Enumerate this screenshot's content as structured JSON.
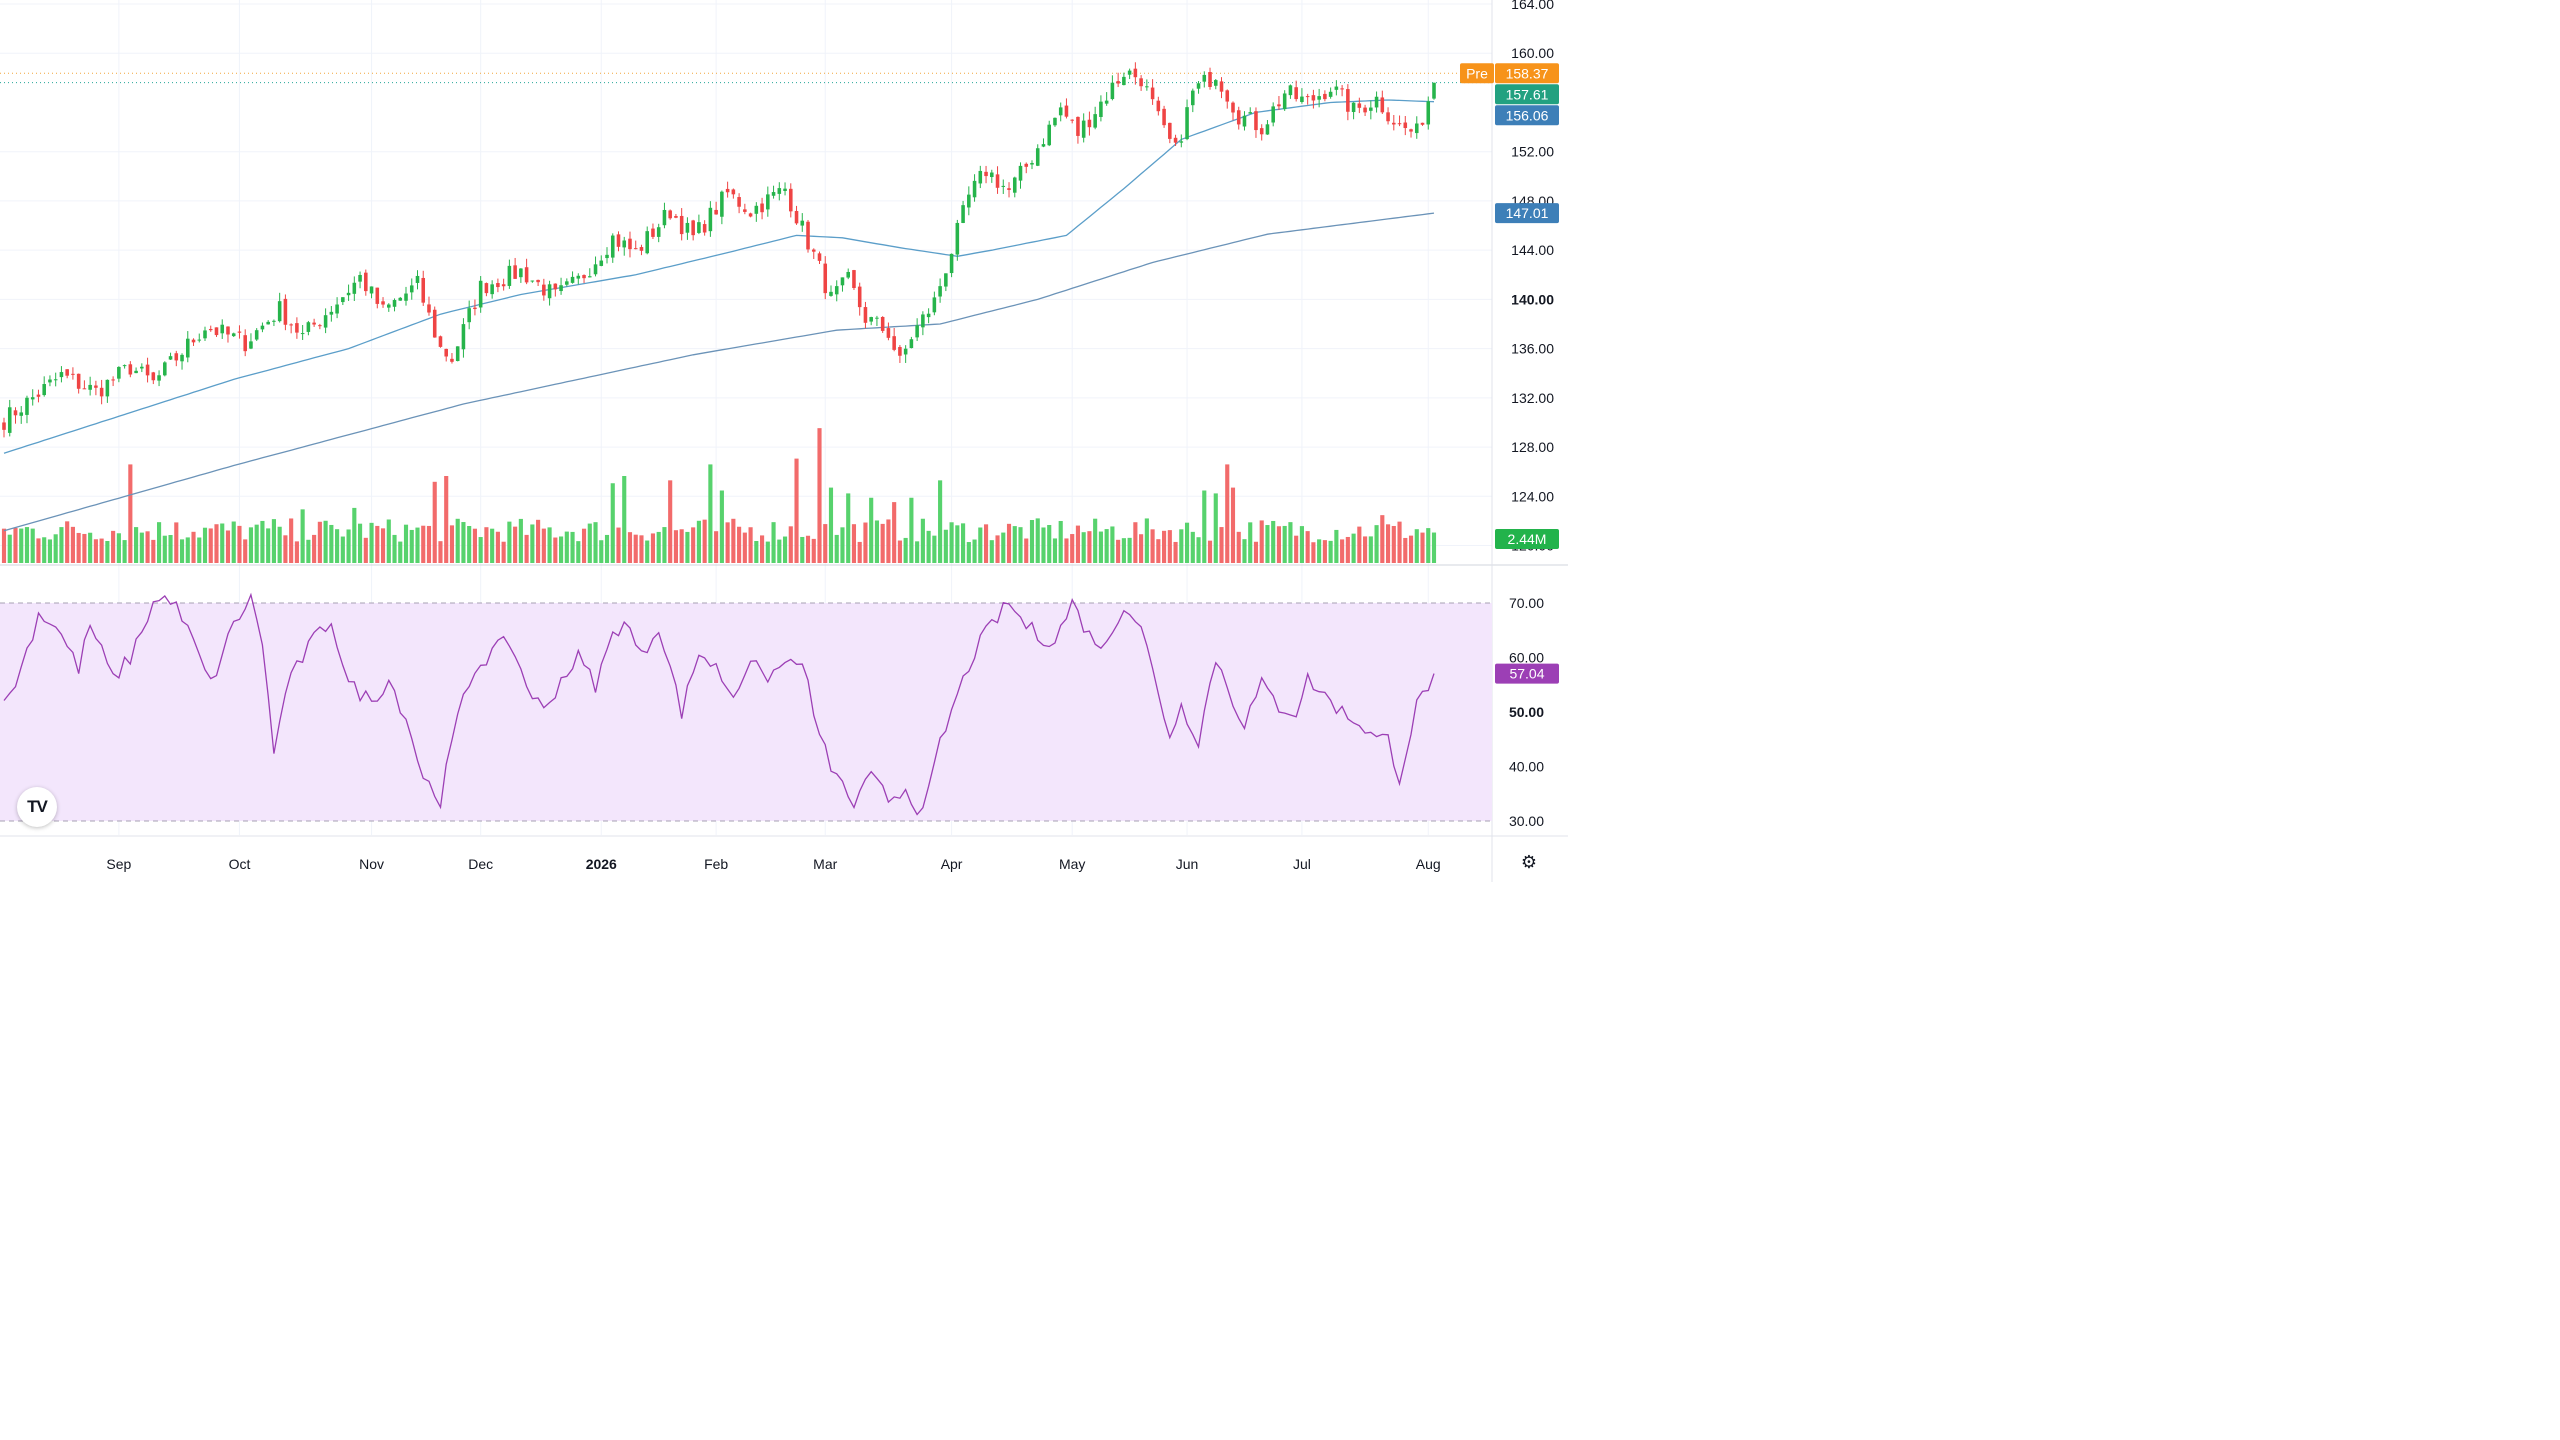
{
  "chart_data": {
    "type": "candlestick",
    "main_panel": {
      "y_ticks": [
        "164.00",
        "160.00",
        "152.00",
        "148.00",
        "144.00",
        "140.00",
        "136.00",
        "132.00",
        "128.00",
        "124.00",
        "120.00"
      ],
      "ylim": [
        118.5,
        164.0
      ],
      "price_series": {
        "start_open": 130.0,
        "waypoints": [
          [
            0,
            130.2
          ],
          [
            10,
            133.8
          ],
          [
            16,
            132.5
          ],
          [
            22,
            134.5
          ],
          [
            26,
            133.2
          ],
          [
            35,
            137.8
          ],
          [
            42,
            136.5
          ],
          [
            48,
            139.2
          ],
          [
            52,
            137.0
          ],
          [
            58,
            139.8
          ],
          [
            62,
            141.8
          ],
          [
            66,
            139.0
          ],
          [
            72,
            141.2
          ],
          [
            76,
            136.0
          ],
          [
            78,
            135.2
          ],
          [
            83,
            141.0
          ],
          [
            90,
            142.3
          ],
          [
            96,
            140.2
          ],
          [
            100,
            141.5
          ],
          [
            106,
            145.0
          ],
          [
            110,
            143.8
          ],
          [
            116,
            147.2
          ],
          [
            120,
            145.0
          ],
          [
            126,
            148.6
          ],
          [
            130,
            147.2
          ],
          [
            136,
            149.0
          ],
          [
            138,
            146.8
          ],
          [
            142,
            142.5
          ],
          [
            144,
            140.0
          ],
          [
            147,
            141.5
          ],
          [
            150,
            138.5
          ],
          [
            154,
            137.3
          ],
          [
            156,
            134.8
          ],
          [
            158,
            137.0
          ],
          [
            162,
            139.8
          ],
          [
            165,
            144.0
          ],
          [
            168,
            148.3
          ],
          [
            171,
            150.5
          ],
          [
            175,
            148.8
          ],
          [
            178,
            150.8
          ],
          [
            184,
            155.5
          ],
          [
            187,
            153.5
          ],
          [
            195,
            158.5
          ],
          [
            198,
            158.0
          ],
          [
            202,
            153.5
          ],
          [
            204,
            152.0
          ],
          [
            207,
            156.8
          ],
          [
            211,
            158.4
          ],
          [
            215,
            155.0
          ],
          [
            219,
            154.0
          ],
          [
            223,
            156.8
          ],
          [
            227,
            156.0
          ],
          [
            231,
            157.3
          ],
          [
            235,
            155.3
          ],
          [
            239,
            156.3
          ],
          [
            243,
            154.0
          ],
          [
            246,
            153.5
          ],
          [
            249,
            157.6
          ]
        ]
      },
      "moving_averages": [
        {
          "points": [
            [
              0,
              127.5
            ],
            [
              20,
              130.5
            ],
            [
              40,
              133.5
            ],
            [
              60,
              136.0
            ],
            [
              76,
              138.8
            ],
            [
              90,
              140.4
            ],
            [
              110,
              142.0
            ],
            [
              126,
              143.8
            ],
            [
              138,
              145.2
            ],
            [
              146,
              145.0
            ],
            [
              156,
              144.2
            ],
            [
              166,
              143.5
            ],
            [
              172,
              144.0
            ],
            [
              185,
              145.2
            ],
            [
              195,
              149.0
            ],
            [
              205,
              153.0
            ],
            [
              218,
              155.2
            ],
            [
              231,
              156.0
            ],
            [
              241,
              156.2
            ],
            [
              249,
              156.06
            ]
          ],
          "color": "#5b9ec9"
        },
        {
          "points": [
            [
              0,
              121.2
            ],
            [
              40,
              126.5
            ],
            [
              80,
              131.5
            ],
            [
              120,
              135.5
            ],
            [
              145,
              137.5
            ],
            [
              163,
              138.0
            ],
            [
              180,
              140.0
            ],
            [
              200,
              143.0
            ],
            [
              220,
              145.3
            ],
            [
              249,
              147.01
            ]
          ],
          "color": "#6b93b8"
        }
      ],
      "reference_lines": [
        {
          "value": 158.37,
          "color": "#f2a53a"
        },
        {
          "value": 157.61,
          "color": "#26a69a"
        }
      ],
      "badges": [
        {
          "prefix": "Pre",
          "text": "158.37",
          "value": 158.37,
          "color": "#f7931a"
        },
        {
          "text": "157.61",
          "value": 157.61,
          "color": "#22a180"
        },
        {
          "text": "156.06",
          "value": 156.06,
          "color": "#3d7fb8"
        },
        {
          "text": "147.01",
          "value": 147.01,
          "color": "#3d7fb8"
        }
      ],
      "up_color": "#26b44b",
      "down_color": "#ef4444"
    },
    "volume_panel": {
      "base_level": 0.22,
      "spikes": [
        [
          22,
          0.68
        ],
        [
          30,
          0.28
        ],
        [
          48,
          0.25
        ],
        [
          52,
          0.37
        ],
        [
          61,
          0.38
        ],
        [
          75,
          0.56
        ],
        [
          77,
          0.6
        ],
        [
          106,
          0.55
        ],
        [
          108,
          0.6
        ],
        [
          116,
          0.57
        ],
        [
          123,
          0.68
        ],
        [
          125,
          0.5
        ],
        [
          138,
          0.72
        ],
        [
          142,
          0.93
        ],
        [
          144,
          0.52
        ],
        [
          147,
          0.48
        ],
        [
          151,
          0.45
        ],
        [
          155,
          0.42
        ],
        [
          158,
          0.45
        ],
        [
          163,
          0.57
        ],
        [
          209,
          0.5
        ],
        [
          211,
          0.48
        ],
        [
          213,
          0.68
        ],
        [
          214,
          0.52
        ],
        [
          240,
          0.33
        ]
      ],
      "last_badge": {
        "text": "2.44M",
        "color": "#22b34b",
        "text_color": "#131722"
      }
    },
    "rsi_panel": {
      "y_ticks": [
        "70.00",
        "60.00",
        "50.00",
        "40.00",
        "30.00"
      ],
      "ylim": [
        30,
        70
      ],
      "band": [
        30,
        70
      ],
      "line_color": "#9c3fb5",
      "fill_color": "#f3e6fc",
      "waypoints": [
        [
          0,
          51
        ],
        [
          3,
          58
        ],
        [
          6,
          68
        ],
        [
          9,
          66
        ],
        [
          13,
          58
        ],
        [
          15,
          66
        ],
        [
          19,
          56
        ],
        [
          22,
          60
        ],
        [
          26,
          70
        ],
        [
          29,
          71
        ],
        [
          32,
          65
        ],
        [
          36,
          55
        ],
        [
          40,
          66
        ],
        [
          43,
          71
        ],
        [
          45,
          63
        ],
        [
          47,
          42
        ],
        [
          49,
          54
        ],
        [
          53,
          62
        ],
        [
          57,
          67
        ],
        [
          60,
          55
        ],
        [
          64,
          52
        ],
        [
          67,
          56
        ],
        [
          70,
          49
        ],
        [
          73,
          38
        ],
        [
          76,
          34
        ],
        [
          79,
          49
        ],
        [
          82,
          58
        ],
        [
          85,
          61
        ],
        [
          88,
          63
        ],
        [
          91,
          55
        ],
        [
          94,
          50
        ],
        [
          97,
          56
        ],
        [
          100,
          60
        ],
        [
          103,
          55
        ],
        [
          106,
          64
        ],
        [
          108,
          67
        ],
        [
          111,
          60
        ],
        [
          114,
          66
        ],
        [
          116,
          58
        ],
        [
          118,
          50
        ],
        [
          121,
          61
        ],
        [
          124,
          58
        ],
        [
          127,
          53
        ],
        [
          130,
          60
        ],
        [
          132,
          56
        ],
        [
          135,
          58
        ],
        [
          138,
          60
        ],
        [
          140,
          55
        ],
        [
          142,
          45
        ],
        [
          145,
          38
        ],
        [
          148,
          33
        ],
        [
          151,
          38
        ],
        [
          154,
          34
        ],
        [
          157,
          36
        ],
        [
          160,
          31
        ],
        [
          163,
          44
        ],
        [
          166,
          53
        ],
        [
          169,
          61
        ],
        [
          172,
          66
        ],
        [
          175,
          70
        ],
        [
          177,
          67
        ],
        [
          180,
          64
        ],
        [
          183,
          63
        ],
        [
          186,
          70
        ],
        [
          189,
          64
        ],
        [
          192,
          62
        ],
        [
          195,
          70
        ],
        [
          198,
          66
        ],
        [
          201,
          53
        ],
        [
          203,
          46
        ],
        [
          205,
          51
        ],
        [
          208,
          45
        ],
        [
          211,
          60
        ],
        [
          214,
          52
        ],
        [
          216,
          48
        ],
        [
          219,
          55
        ],
        [
          222,
          51
        ],
        [
          225,
          50
        ],
        [
          227,
          56
        ],
        [
          230,
          53
        ],
        [
          233,
          50
        ],
        [
          236,
          48
        ],
        [
          239,
          45
        ],
        [
          241,
          45
        ],
        [
          243,
          38
        ],
        [
          246,
          51
        ],
        [
          249,
          57.04
        ]
      ],
      "last_badge": {
        "text": "57.04",
        "color": "#9c3fb5"
      }
    },
    "x_ticks": [
      {
        "label": "Sep",
        "bar": 20,
        "bold": false
      },
      {
        "label": "Oct",
        "bar": 41,
        "bold": false
      },
      {
        "label": "Nov",
        "bar": 64,
        "bold": false
      },
      {
        "label": "Dec",
        "bar": 83,
        "bold": false
      },
      {
        "label": "2026",
        "bar": 104,
        "bold": true
      },
      {
        "label": "Feb",
        "bar": 124,
        "bold": false
      },
      {
        "label": "Mar",
        "bar": 143,
        "bold": false
      },
      {
        "label": "Apr",
        "bar": 165,
        "bold": false
      },
      {
        "label": "May",
        "bar": 186,
        "bold": false
      },
      {
        "label": "Jun",
        "bar": 206,
        "bold": false
      },
      {
        "label": "Jul",
        "bar": 226,
        "bold": false
      },
      {
        "label": "Aug",
        "bar": 248,
        "bold": false
      }
    ],
    "bar_count": 250,
    "grid": true
  },
  "watermark": {
    "logo_text": "TV"
  },
  "settings": {
    "icon": "gear-icon"
  }
}
